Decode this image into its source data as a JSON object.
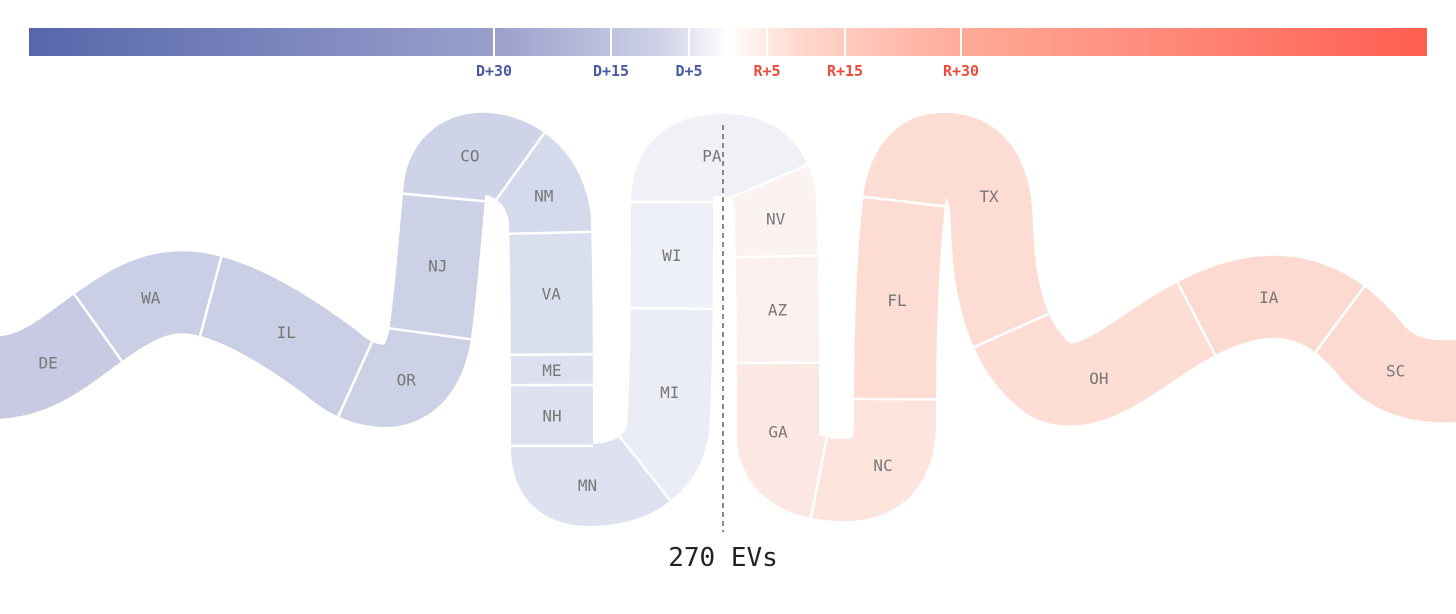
{
  "scale": {
    "ticks": [
      {
        "label": "D+30",
        "side": "D"
      },
      {
        "label": "D+15",
        "side": "D"
      },
      {
        "label": "D+5",
        "side": "D"
      },
      {
        "label": "R+5",
        "side": "R"
      },
      {
        "label": "R+15",
        "side": "R"
      },
      {
        "label": "R+30",
        "side": "R"
      }
    ],
    "colors": {
      "dem_strong": "#5566aa",
      "dem_light": "#eef0f8",
      "neutral": "#ffffff",
      "rep_light": "#fdeee9",
      "rep_strong": "#ff5e50"
    }
  },
  "states": [
    {
      "label": "DE",
      "fill": "#c7cae2"
    },
    {
      "label": "WA",
      "fill": "#cbcfe5"
    },
    {
      "label": "IL",
      "fill": "#cbcfe5"
    },
    {
      "label": "OR",
      "fill": "#cdd1e6"
    },
    {
      "label": "NJ",
      "fill": "#cdd1e6"
    },
    {
      "label": "CO",
      "fill": "#cfd3e8"
    },
    {
      "label": "NM",
      "fill": "#d5d9ec"
    },
    {
      "label": "VA",
      "fill": "#dadfef"
    },
    {
      "label": "ME",
      "fill": "#dce0f0"
    },
    {
      "label": "NH",
      "fill": "#dce0f0"
    },
    {
      "label": "MN",
      "fill": "#dde1f0"
    },
    {
      "label": "MI",
      "fill": "#eaedf5"
    },
    {
      "label": "WI",
      "fill": "#eef0f7"
    },
    {
      "label": "PA",
      "fill": "#eff1f7"
    },
    {
      "label": "NV",
      "fill": "#fbf3f1"
    },
    {
      "label": "AZ",
      "fill": "#fbf0ed"
    },
    {
      "label": "GA",
      "fill": "#fce8e2"
    },
    {
      "label": "NC",
      "fill": "#fde4dd"
    },
    {
      "label": "FL",
      "fill": "#fddcd3"
    },
    {
      "label": "TX",
      "fill": "#fddcd3"
    },
    {
      "label": "OH",
      "fill": "#fdddd4"
    },
    {
      "label": "IA",
      "fill": "#fcdad1"
    },
    {
      "label": "SC",
      "fill": "#fcdad1"
    }
  ],
  "threshold_label": "270 EVs"
}
